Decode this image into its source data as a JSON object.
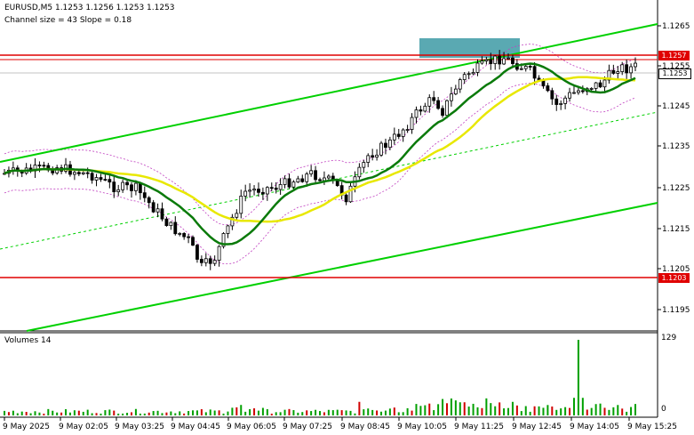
{
  "header": {
    "symbol_line": "EURUSD,M5  1.1253 1.1256 1.1253 1.1253",
    "indicator_line": "Channel size = 43 Slope = 0.18"
  },
  "price_axis": {
    "ticks": [
      "1.1265",
      "1.1255",
      "1.1245",
      "1.1235",
      "1.1225",
      "1.1215",
      "1.1205",
      "1.1195"
    ],
    "tag_high": "1.1257",
    "tag_current": "1.1253",
    "tag_low": "1.1203"
  },
  "volume_panel": {
    "label": "Volumes 14",
    "max_tick": "129",
    "min_tick": "0"
  },
  "time_axis": {
    "ticks": [
      "9 May 2025",
      "9 May 02:05",
      "9 May 03:25",
      "9 May 04:45",
      "9 May 06:05",
      "9 May 07:25",
      "9 May 08:45",
      "9 May 10:05",
      "9 May 11:25",
      "9 May 12:45",
      "9 May 14:05",
      "9 May 15:25"
    ]
  },
  "colors": {
    "candle": "#000000",
    "channel": "#00d000",
    "ma_fast": "#0a7a0a",
    "ma_slow": "#e8e800",
    "level_line": "#e00000",
    "bands": "#c040c0",
    "highlight_box": "#3d9aa5",
    "volume_bar": "#00a000",
    "volume_bar_down": "#d00000"
  }
}
